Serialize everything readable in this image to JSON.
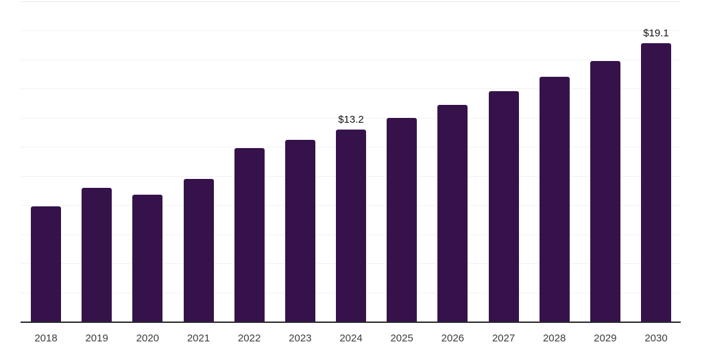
{
  "chart_data": {
    "type": "bar",
    "title": "",
    "xlabel": "",
    "ylabel": "",
    "categories": [
      "2018",
      "2019",
      "2020",
      "2021",
      "2022",
      "2023",
      "2024",
      "2025",
      "2026",
      "2027",
      "2028",
      "2029",
      "2030"
    ],
    "values": [
      7.9,
      9.2,
      8.7,
      9.8,
      11.9,
      12.5,
      13.2,
      14.0,
      14.9,
      15.8,
      16.8,
      17.9,
      19.1
    ],
    "value_labels": [
      {
        "category": "2024",
        "text": "$13.2"
      },
      {
        "category": "2030",
        "text": "$19.1"
      }
    ],
    "ylim": [
      0,
      22
    ],
    "gridline_step": 2,
    "grid": true,
    "legend": false,
    "bar_color": "#36124B",
    "gridline_color": "#f2f2f4",
    "top_gridline_color": "#e8e8ea",
    "axis_color": "#2a2a2e",
    "label_color": "#141414",
    "tick_color": "#3c3c3c"
  }
}
